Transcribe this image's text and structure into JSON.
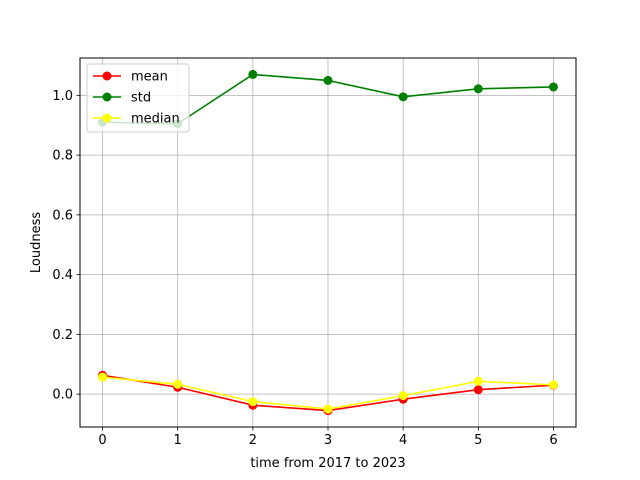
{
  "chart_data": {
    "type": "line",
    "title": "",
    "xlabel": "time from 2017 to 2023",
    "ylabel": "Loudness",
    "x": [
      0,
      1,
      2,
      3,
      4,
      5,
      6
    ],
    "xticks": [
      "0",
      "1",
      "2",
      "3",
      "4",
      "5",
      "6"
    ],
    "yticks": [
      "0.0",
      "0.2",
      "0.4",
      "0.6",
      "0.8",
      "1.0"
    ],
    "xlim": [
      -0.3,
      6.3
    ],
    "ylim": [
      -0.11,
      1.125
    ],
    "grid": true,
    "legend_position": "top-left",
    "series": [
      {
        "name": "mean",
        "color": "#ff0000",
        "values": [
          0.063,
          0.023,
          -0.037,
          -0.055,
          -0.017,
          0.015,
          0.03
        ]
      },
      {
        "name": "std",
        "color": "#008000",
        "values": [
          0.91,
          0.905,
          1.07,
          1.05,
          0.995,
          1.022,
          1.028
        ]
      },
      {
        "name": "median",
        "color": "#ffff00",
        "values": [
          0.057,
          0.033,
          -0.025,
          -0.05,
          -0.005,
          0.043,
          0.031
        ]
      }
    ]
  }
}
